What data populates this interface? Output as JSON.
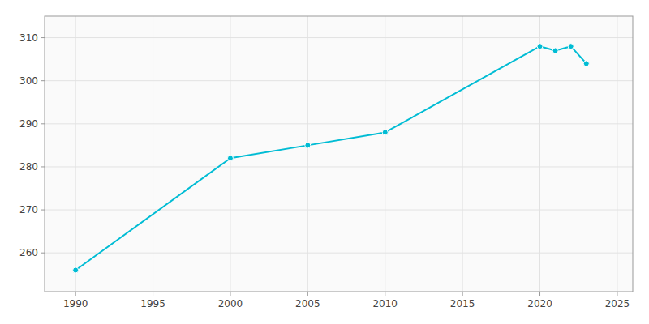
{
  "chart_data": {
    "type": "line",
    "x": [
      1990,
      2000,
      2005,
      2010,
      2020,
      2021,
      2022,
      2023
    ],
    "values": [
      256,
      282,
      285,
      288,
      308,
      307,
      308,
      304
    ],
    "color": "#00BCD4",
    "marker": "circle",
    "xlim": [
      1988,
      2026
    ],
    "ylim": [
      251,
      315
    ],
    "xticks": [
      1990,
      1995,
      2000,
      2005,
      2010,
      2015,
      2020,
      2025
    ],
    "yticks": [
      260,
      270,
      280,
      290,
      300,
      310
    ],
    "grid": true
  }
}
